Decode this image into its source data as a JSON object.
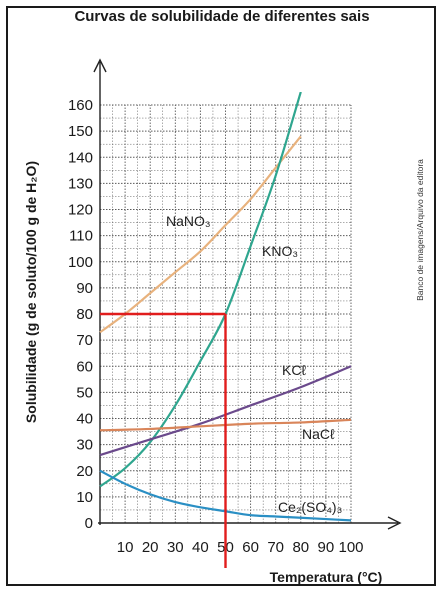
{
  "chart_data": {
    "type": "line",
    "title": "Curvas de solubilidade de diferentes sais",
    "xlabel": "Temperatura (°C)",
    "ylabel": "Solubilidade (g de soluto/100 g de H₂O)",
    "xlim": [
      0,
      100
    ],
    "ylim": [
      0,
      160
    ],
    "x_ticks": [
      10,
      20,
      30,
      40,
      50,
      60,
      70,
      80,
      90,
      100
    ],
    "y_ticks": [
      0,
      10,
      20,
      30,
      40,
      50,
      60,
      70,
      80,
      90,
      100,
      110,
      120,
      130,
      140,
      150,
      160
    ],
    "grid": true,
    "credit": "Banco de imagens/Arquivo da editora",
    "series": [
      {
        "name": "NaNO₃",
        "color": "#e8b27d",
        "x": [
          0,
          10,
          20,
          30,
          40,
          50,
          60,
          70,
          80
        ],
        "y": [
          73,
          80,
          88,
          96,
          104,
          114,
          124,
          136,
          148
        ]
      },
      {
        "name": "KNO₃",
        "color": "#2fa68f",
        "x": [
          0,
          10,
          20,
          30,
          40,
          50,
          60,
          70,
          80
        ],
        "y": [
          14,
          21,
          31,
          45,
          62,
          80,
          106,
          133,
          165
        ]
      },
      {
        "name": "KCℓ",
        "color": "#6b4a8c",
        "x": [
          0,
          20,
          40,
          60,
          80,
          100
        ],
        "y": [
          26,
          32,
          38,
          45,
          52,
          60
        ]
      },
      {
        "name": "NaCℓ",
        "color": "#d9855a",
        "x": [
          0,
          20,
          40,
          60,
          80,
          100
        ],
        "y": [
          35.5,
          36,
          37,
          38,
          38.5,
          39.5
        ]
      },
      {
        "name": "Ce₂(SO₄)₃",
        "color": "#2a8fc4",
        "x": [
          0,
          10,
          20,
          30,
          40,
          50,
          60,
          70,
          80,
          90,
          100
        ],
        "y": [
          20,
          15,
          11,
          8,
          6,
          4.5,
          3,
          2.5,
          2,
          1.5,
          1
        ]
      }
    ],
    "annotations": [
      {
        "type": "guide",
        "color": "#e11d1d",
        "x": 50,
        "y": 80
      }
    ]
  }
}
